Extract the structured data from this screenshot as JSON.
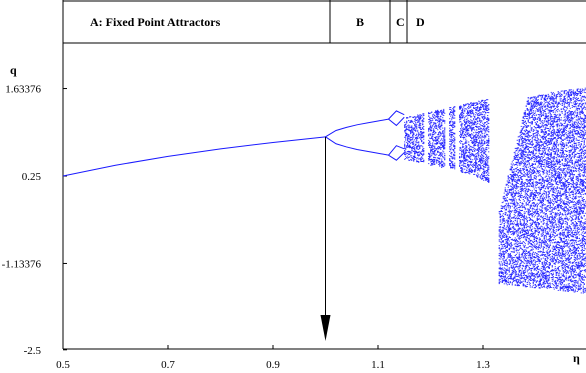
{
  "chart_data": {
    "type": "scatter",
    "title": "",
    "xlabel": "η",
    "ylabel": "q",
    "xlim": [
      0.5,
      1.5
    ],
    "ylim": [
      -2.5,
      2.3
    ],
    "x_ticks": [
      {
        "value": 0.5,
        "label": "0.5"
      },
      {
        "value": 0.7,
        "label": "0.7"
      },
      {
        "value": 0.9,
        "label": "0.9"
      },
      {
        "value": 1.1,
        "label": "1.1"
      },
      {
        "value": 1.3,
        "label": "1.3"
      }
    ],
    "y_ticks": [
      {
        "value": 1.63376,
        "label": "1.63376"
      },
      {
        "value": 0.25,
        "label": "0.25"
      },
      {
        "value": -1.13376,
        "label": "-1.13376"
      },
      {
        "value": -2.5,
        "label": "-2.5"
      }
    ],
    "regions": [
      {
        "label": "A: Fixed Point Attractors",
        "x_start": 0.5,
        "x_end": 1.0
      },
      {
        "label": "B",
        "x_start": 1.0,
        "x_end": 1.12
      },
      {
        "label": "C",
        "x_start": 1.12,
        "x_end": 1.15
      },
      {
        "label": "D",
        "x_start": 1.15,
        "x_end": 1.5
      }
    ],
    "fixed_point_branch": {
      "x": [
        0.5,
        0.6,
        0.7,
        0.8,
        0.9,
        1.0
      ],
      "y": [
        0.25,
        0.42,
        0.56,
        0.68,
        0.78,
        0.87
      ]
    },
    "period2_branches": {
      "x": [
        1.0,
        1.02,
        1.04,
        1.06,
        1.08,
        1.1,
        1.12
      ],
      "upper": [
        0.87,
        0.97,
        1.02,
        1.06,
        1.09,
        1.12,
        1.15
      ],
      "lower": [
        0.87,
        0.76,
        0.71,
        0.67,
        0.64,
        0.61,
        0.58
      ]
    },
    "period4_branches": {
      "x": [
        1.12,
        1.135,
        1.15
      ],
      "upper_pair": [
        [
          1.15,
          1.28,
          1.22
        ],
        [
          1.15,
          1.05,
          1.18
        ]
      ],
      "lower_pair": [
        [
          0.58,
          0.73,
          0.68
        ],
        [
          0.58,
          0.5,
          0.62
        ]
      ]
    },
    "chaotic_band_1": {
      "x_start": 1.15,
      "x_end": 1.31,
      "upper": [
        1.18,
        1.24,
        1.3,
        1.36,
        1.42,
        1.48
      ],
      "lower": [
        0.52,
        0.46,
        0.4,
        0.34,
        0.28,
        0.15
      ]
    },
    "periodic_window_x": [
      1.19,
      1.23,
      1.25
    ],
    "chaotic_band_2": {
      "x_start": 1.33,
      "x_end": 1.5,
      "upper": [
        -0.3,
        1.5,
        1.6,
        1.65
      ],
      "lower": [
        -1.45,
        -1.5,
        -1.55,
        -1.6
      ]
    },
    "annotation_arrow": {
      "x": 1.0,
      "y_from": 0.87,
      "y_to": -2.5
    }
  }
}
